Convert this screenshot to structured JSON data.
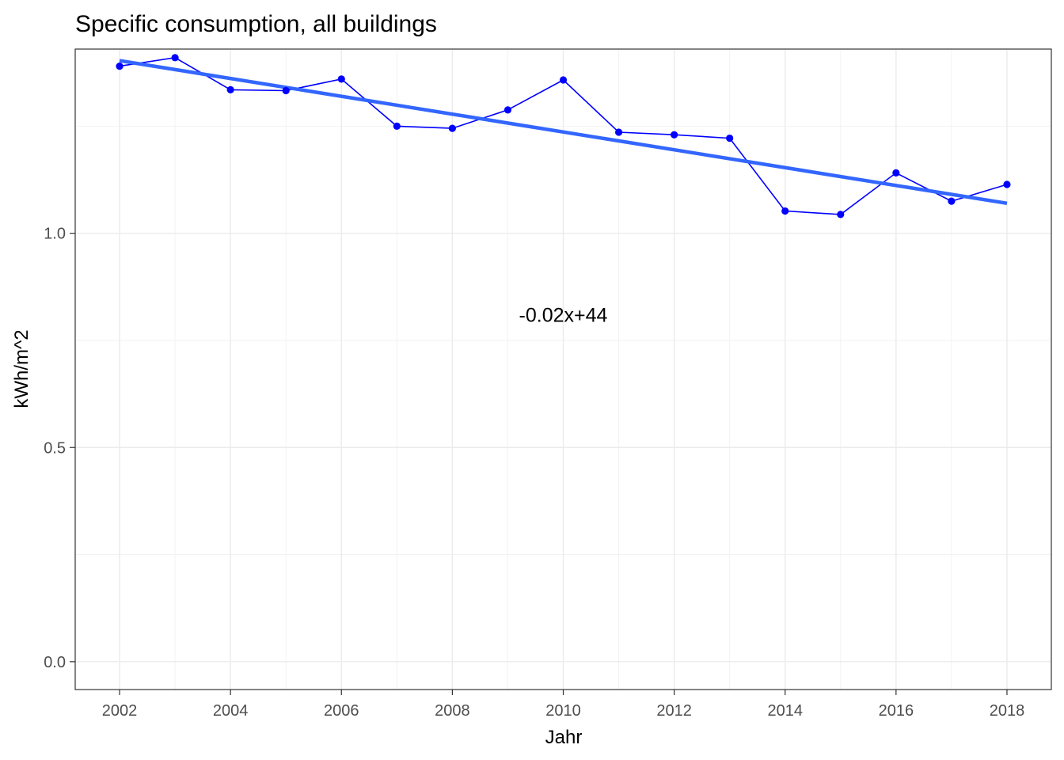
{
  "chart_data": {
    "type": "line",
    "title": "Specific consumption, all buildings",
    "xlabel": "Jahr",
    "ylabel": "kWh/m^2",
    "x": [
      2002,
      2003,
      2004,
      2005,
      2006,
      2007,
      2008,
      2009,
      2010,
      2011,
      2012,
      2013,
      2014,
      2015,
      2016,
      2017,
      2018
    ],
    "series": [
      {
        "values": [
          1.39,
          1.41,
          1.335,
          1.333,
          1.36,
          1.25,
          1.245,
          1.288,
          1.358,
          1.236,
          1.23,
          1.222,
          1.052,
          1.044,
          1.141,
          1.075,
          1.114
        ],
        "color": "#0000ff",
        "style": "line-with-points"
      }
    ],
    "trend": {
      "type": "linear",
      "x_start": 2002,
      "y_start": 1.403,
      "x_end": 2018,
      "y_end": 1.07,
      "color": "#3366ff"
    },
    "annotation": {
      "text": "-0.02x+44",
      "x": 2010,
      "y": 0.793
    },
    "xticks": [
      "2002",
      "2004",
      "2006",
      "2008",
      "2010",
      "2012",
      "2014",
      "2016",
      "2018"
    ],
    "yticks": [
      "0.0",
      "0.5",
      "1.0"
    ],
    "xlim": [
      2001.2,
      2018.8
    ],
    "ylim": [
      -0.065,
      1.43
    ],
    "grid": true,
    "theme": "bw"
  }
}
